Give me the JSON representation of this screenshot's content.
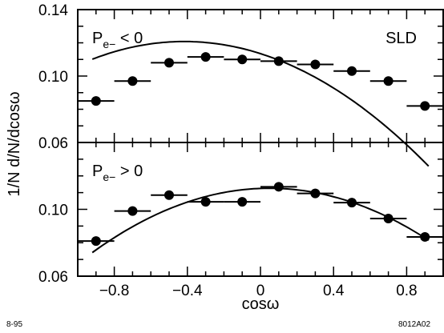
{
  "chart_data": [
    {
      "type": "scatter",
      "panel": "top",
      "annotation_main": "P",
      "annotation_sub": "e−",
      "annotation_rel": " < 0",
      "label": "SLD",
      "xlim": [
        -1.0,
        1.0
      ],
      "ylim": [
        0.06,
        0.14
      ],
      "yticks": [
        0.06,
        0.1,
        0.14
      ],
      "yticklabels": [
        "0.06",
        "0.10",
        "0.14"
      ],
      "x": [
        -0.9,
        -0.7,
        -0.5,
        -0.3,
        -0.1,
        0.1,
        0.3,
        0.5,
        0.7,
        0.9
      ],
      "y": [
        0.085,
        0.097,
        0.108,
        0.1115,
        0.11,
        0.109,
        0.107,
        0.103,
        0.097,
        0.082
      ],
      "fit": {
        "a": 0.1135,
        "b": -0.035,
        "c": -0.042
      }
    },
    {
      "type": "scatter",
      "panel": "bottom",
      "annotation_main": "P",
      "annotation_sub": "e−",
      "annotation_rel": " > 0",
      "xlim": [
        -1.0,
        1.0
      ],
      "ylim": [
        0.06,
        0.14
      ],
      "yticks": [
        0.06,
        0.1
      ],
      "yticklabels": [
        "0.06",
        "0.10"
      ],
      "x": [
        -0.9,
        -0.7,
        -0.5,
        -0.3,
        -0.1,
        0.1,
        0.3,
        0.5,
        0.7,
        0.9
      ],
      "y": [
        0.081,
        0.099,
        0.1085,
        0.1045,
        0.1045,
        0.1135,
        0.1095,
        0.104,
        0.0945,
        0.0835
      ],
      "fit": {
        "a": 0.1125,
        "b": 0.004,
        "c": -0.041
      }
    }
  ],
  "axes": {
    "xticks": [
      -0.8,
      -0.4,
      0.0,
      0.4,
      0.8
    ],
    "xticklabels": [
      "−0.8",
      "−0.4",
      "0",
      "0.4",
      "0.8"
    ],
    "xlabel": "cosω",
    "ylabel": "1/N d/N/dcosω"
  },
  "footer": {
    "left": "8-95",
    "right": "8012A02"
  }
}
